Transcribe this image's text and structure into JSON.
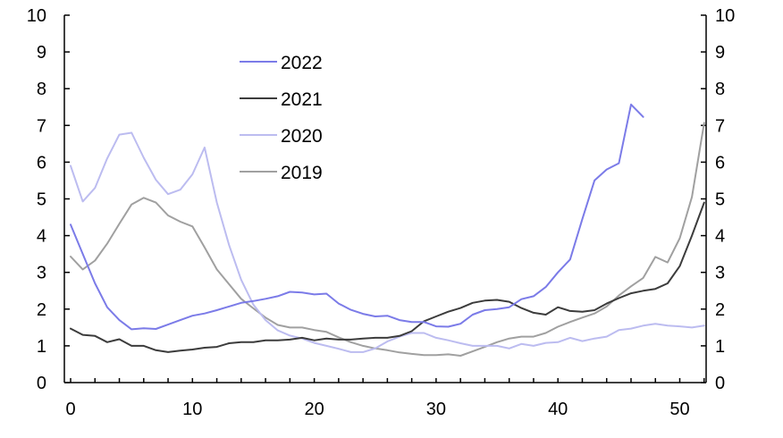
{
  "chart_data": {
    "type": "line",
    "title": "",
    "xlabel": "",
    "ylabel": "",
    "xlim": [
      -0.5,
      52.5
    ],
    "ylim": [
      0,
      10
    ],
    "x_ticks": [
      0,
      10,
      20,
      30,
      40,
      50
    ],
    "y_ticks": [
      0,
      1,
      2,
      3,
      4,
      5,
      6,
      7,
      8,
      9,
      10
    ],
    "x_tick_labels": [
      "0",
      "10",
      "20",
      "30",
      "40",
      "50"
    ],
    "y_tick_labels": [
      "0",
      "1",
      "2",
      "3",
      "4",
      "5",
      "6",
      "7",
      "8",
      "9",
      "10"
    ],
    "grid": false,
    "legend_position": "top-center",
    "series": [
      {
        "name": "2022",
        "color": "#7b7be8",
        "values": [
          4.3,
          3.5,
          2.7,
          2.05,
          1.7,
          1.45,
          1.48,
          1.46,
          1.58,
          1.7,
          1.82,
          1.88,
          1.97,
          2.07,
          2.17,
          2.22,
          2.28,
          2.35,
          2.47,
          2.45,
          2.4,
          2.42,
          2.15,
          1.98,
          1.87,
          1.8,
          1.82,
          1.7,
          1.65,
          1.65,
          1.53,
          1.52,
          1.6,
          1.85,
          1.97,
          2.0,
          2.05,
          2.27,
          2.35,
          2.6,
          3.0,
          3.35,
          4.45,
          5.5,
          5.8,
          5.97,
          7.57,
          7.23
        ]
      },
      {
        "name": "2021",
        "color": "#3c3c3c",
        "values": [
          1.47,
          1.3,
          1.27,
          1.1,
          1.18,
          1.0,
          1.0,
          0.88,
          0.83,
          0.87,
          0.9,
          0.95,
          0.97,
          1.07,
          1.1,
          1.1,
          1.15,
          1.15,
          1.17,
          1.22,
          1.15,
          1.2,
          1.17,
          1.17,
          1.2,
          1.22,
          1.22,
          1.27,
          1.4,
          1.67,
          1.8,
          1.93,
          2.03,
          2.17,
          2.23,
          2.25,
          2.2,
          2.03,
          1.9,
          1.85,
          2.05,
          1.95,
          1.93,
          1.97,
          2.15,
          2.3,
          2.43,
          2.5,
          2.55,
          2.7,
          3.17,
          4.0,
          4.9
        ]
      },
      {
        "name": "2020",
        "color": "#bcbcf0",
        "values": [
          5.9,
          4.93,
          5.3,
          6.1,
          6.75,
          6.8,
          6.12,
          5.52,
          5.13,
          5.25,
          5.67,
          6.4,
          4.9,
          3.75,
          2.8,
          2.12,
          1.7,
          1.42,
          1.28,
          1.2,
          1.08,
          1.0,
          0.92,
          0.83,
          0.83,
          0.93,
          1.12,
          1.25,
          1.35,
          1.35,
          1.22,
          1.15,
          1.07,
          1.0,
          1.0,
          1.0,
          0.93,
          1.05,
          1.0,
          1.08,
          1.1,
          1.22,
          1.13,
          1.2,
          1.25,
          1.43,
          1.47,
          1.55,
          1.6,
          1.55,
          1.53,
          1.5,
          1.55
        ]
      },
      {
        "name": "2019",
        "color": "#a0a0a0",
        "values": [
          3.43,
          3.08,
          3.32,
          3.78,
          4.32,
          4.85,
          5.03,
          4.9,
          4.55,
          4.38,
          4.25,
          3.68,
          3.08,
          2.68,
          2.28,
          2.02,
          1.77,
          1.57,
          1.5,
          1.5,
          1.43,
          1.38,
          1.23,
          1.1,
          1.0,
          0.93,
          0.88,
          0.82,
          0.78,
          0.75,
          0.75,
          0.77,
          0.73,
          0.85,
          0.97,
          1.1,
          1.2,
          1.25,
          1.25,
          1.35,
          1.52,
          1.65,
          1.77,
          1.88,
          2.07,
          2.37,
          2.62,
          2.85,
          3.42,
          3.27,
          3.93,
          5.05,
          7.07
        ]
      }
    ]
  }
}
